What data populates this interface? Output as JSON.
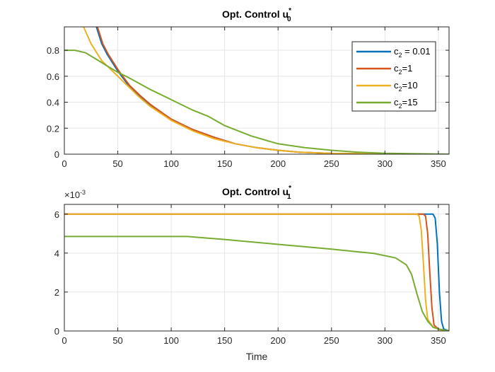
{
  "chart_data": [
    {
      "type": "line",
      "title": "Opt. Control u",
      "title_sub": "0",
      "title_sup": "*",
      "xlabel": "",
      "ylabel": "",
      "xlim": [
        0,
        360
      ],
      "ylim": [
        0,
        0.98
      ],
      "xticks": [
        0,
        50,
        100,
        150,
        200,
        250,
        300,
        350
      ],
      "yticks": [
        0,
        0.2,
        0.4,
        0.6,
        0.8
      ],
      "ytick_labels": [
        "0",
        "0.2",
        "0.4",
        "0.6",
        "0.8"
      ],
      "grid": true,
      "legend_position": "top-right",
      "series": [
        {
          "name": "c2 = 0.01",
          "label_main": "c",
          "label_sub": "2",
          "label_rest": " = 0.01",
          "color": "#0072BD",
          "x": [
            30,
            35,
            40,
            50,
            60,
            70,
            80,
            100,
            120,
            140,
            160,
            180,
            200,
            220,
            250,
            280,
            300,
            330,
            360
          ],
          "y": [
            0.98,
            0.85,
            0.77,
            0.64,
            0.53,
            0.45,
            0.38,
            0.27,
            0.19,
            0.13,
            0.08,
            0.05,
            0.03,
            0.015,
            0.006,
            0.003,
            0.001,
            0.0,
            0.0
          ]
        },
        {
          "name": "c2=1",
          "label_main": "c",
          "label_sub": "2",
          "label_rest": "=1",
          "color": "#D95319",
          "x": [
            31,
            36,
            41,
            51,
            61,
            71,
            81,
            100,
            120,
            140,
            160,
            180,
            200,
            220,
            250,
            280,
            300,
            330,
            360
          ],
          "y": [
            0.98,
            0.85,
            0.77,
            0.64,
            0.53,
            0.45,
            0.38,
            0.27,
            0.19,
            0.13,
            0.08,
            0.05,
            0.03,
            0.015,
            0.006,
            0.003,
            0.001,
            0.0,
            0.0
          ]
        },
        {
          "name": "c2=10",
          "label_main": "c",
          "label_sub": "2",
          "label_rest": "=10",
          "color": "#EDB120",
          "x": [
            18,
            25,
            35,
            50,
            60,
            70,
            80,
            100,
            120,
            140,
            160,
            180,
            200,
            220,
            250,
            280,
            300,
            330,
            360
          ],
          "y": [
            0.98,
            0.85,
            0.72,
            0.6,
            0.52,
            0.44,
            0.37,
            0.26,
            0.18,
            0.12,
            0.08,
            0.05,
            0.03,
            0.015,
            0.006,
            0.003,
            0.001,
            0.0,
            0.0
          ]
        },
        {
          "name": "c2=15",
          "label_main": "c",
          "label_sub": "2",
          "label_rest": "=15",
          "color": "#77AC30",
          "x": [
            0,
            10,
            20,
            30,
            40,
            50,
            60,
            80,
            100,
            120,
            135,
            150,
            175,
            200,
            225,
            250,
            275,
            300,
            330,
            360
          ],
          "y": [
            0.8,
            0.8,
            0.78,
            0.73,
            0.68,
            0.63,
            0.59,
            0.5,
            0.42,
            0.34,
            0.29,
            0.22,
            0.14,
            0.08,
            0.05,
            0.03,
            0.015,
            0.007,
            0.003,
            0.0
          ]
        }
      ]
    },
    {
      "type": "line",
      "title": "Opt. Control u",
      "title_sub": "1",
      "title_sup": "*",
      "xlabel": "Time",
      "ylabel": "",
      "exponent_label": "×10",
      "exponent_value": "-3",
      "xlim": [
        0,
        360
      ],
      "ylim": [
        0,
        0.0065
      ],
      "xticks": [
        0,
        50,
        100,
        150,
        200,
        250,
        300,
        350
      ],
      "yticks": [
        0,
        0.002,
        0.004,
        0.006
      ],
      "ytick_labels": [
        "0",
        "2",
        "4",
        "6"
      ],
      "grid": true,
      "series": [
        {
          "name": "c2 = 0.01",
          "color": "#0072BD",
          "x": [
            0,
            343,
            345,
            347,
            349,
            351,
            353,
            355,
            360
          ],
          "y": [
            0.006,
            0.006,
            0.006,
            0.0058,
            0.0045,
            0.002,
            0.0005,
            0.0001,
            0.0
          ]
        },
        {
          "name": "c2=1",
          "color": "#D95319",
          "x": [
            0,
            336,
            338,
            340,
            342,
            344,
            346,
            350,
            360
          ],
          "y": [
            0.006,
            0.006,
            0.0059,
            0.005,
            0.003,
            0.0012,
            0.0003,
            0.0001,
            0.0
          ]
        },
        {
          "name": "c2=10",
          "color": "#EDB120",
          "x": [
            0,
            330,
            332,
            334,
            336,
            338,
            340,
            345,
            355,
            360
          ],
          "y": [
            0.006,
            0.006,
            0.0059,
            0.0052,
            0.0035,
            0.0016,
            0.0006,
            0.0002,
            0.0,
            0.0
          ]
        },
        {
          "name": "c2=15",
          "color": "#77AC30",
          "x": [
            0,
            115,
            150,
            200,
            250,
            290,
            310,
            320,
            325,
            330,
            335,
            340,
            345,
            350,
            360
          ],
          "y": [
            0.00485,
            0.00485,
            0.0047,
            0.00445,
            0.0042,
            0.00398,
            0.00375,
            0.0034,
            0.0029,
            0.0019,
            0.001,
            0.0005,
            0.0002,
            0.0001,
            0.0
          ]
        }
      ]
    }
  ]
}
